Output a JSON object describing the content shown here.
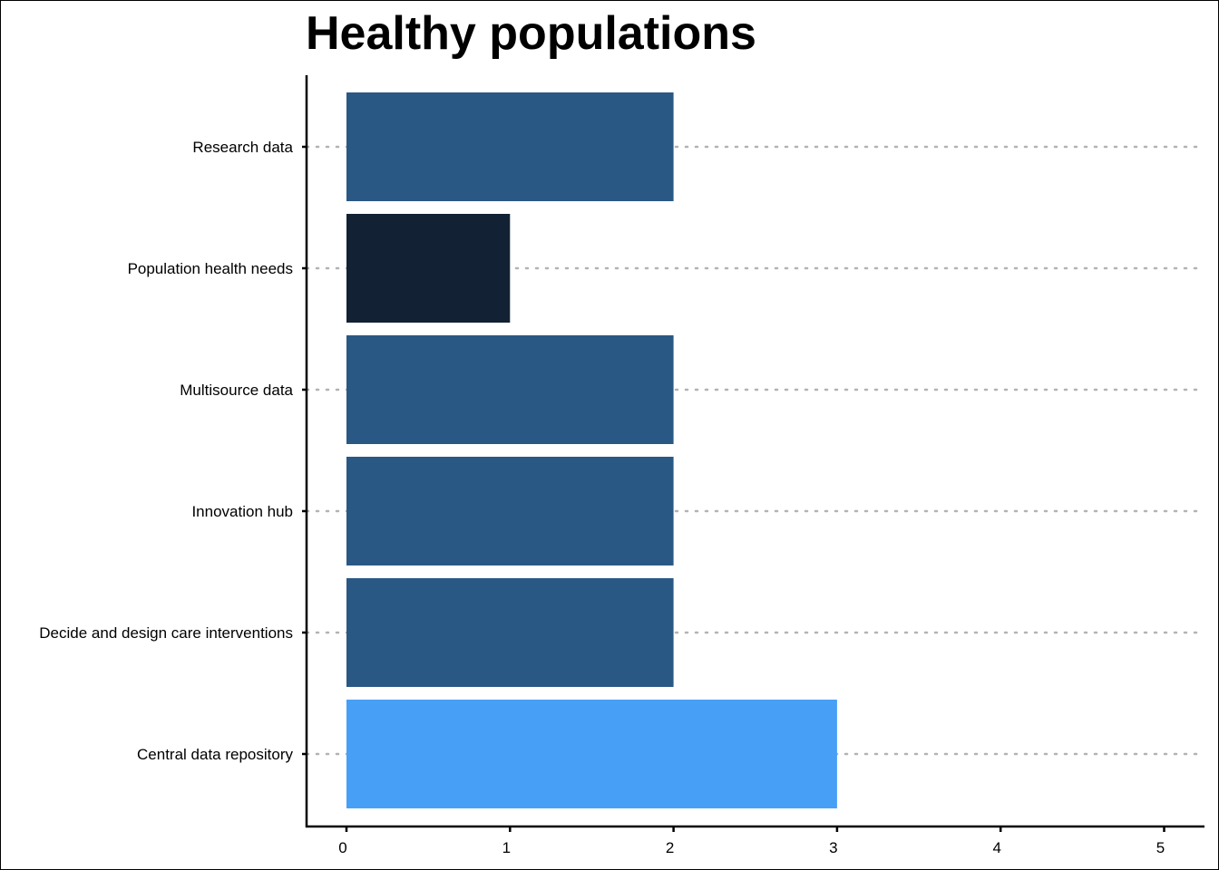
{
  "chart_data": {
    "type": "bar",
    "orientation": "horizontal",
    "title": "Healthy populations",
    "xlabel": "",
    "ylabel": "",
    "categories": [
      "Research data",
      "Population health needs",
      "Multisource data",
      "Innovation hub",
      "Decide and design care interventions",
      "Central data repository"
    ],
    "values": [
      2,
      1,
      2,
      2,
      2,
      3
    ],
    "bar_colors": [
      "#2a5885",
      "#122133",
      "#2a5885",
      "#2a5885",
      "#2a5885",
      "#489ff6"
    ],
    "xlim": [
      0,
      5
    ],
    "xticks": [
      "0",
      "1",
      "2",
      "3",
      "4",
      "5"
    ],
    "grid": "dotted horizontal lines at each category",
    "legend": "none"
  }
}
